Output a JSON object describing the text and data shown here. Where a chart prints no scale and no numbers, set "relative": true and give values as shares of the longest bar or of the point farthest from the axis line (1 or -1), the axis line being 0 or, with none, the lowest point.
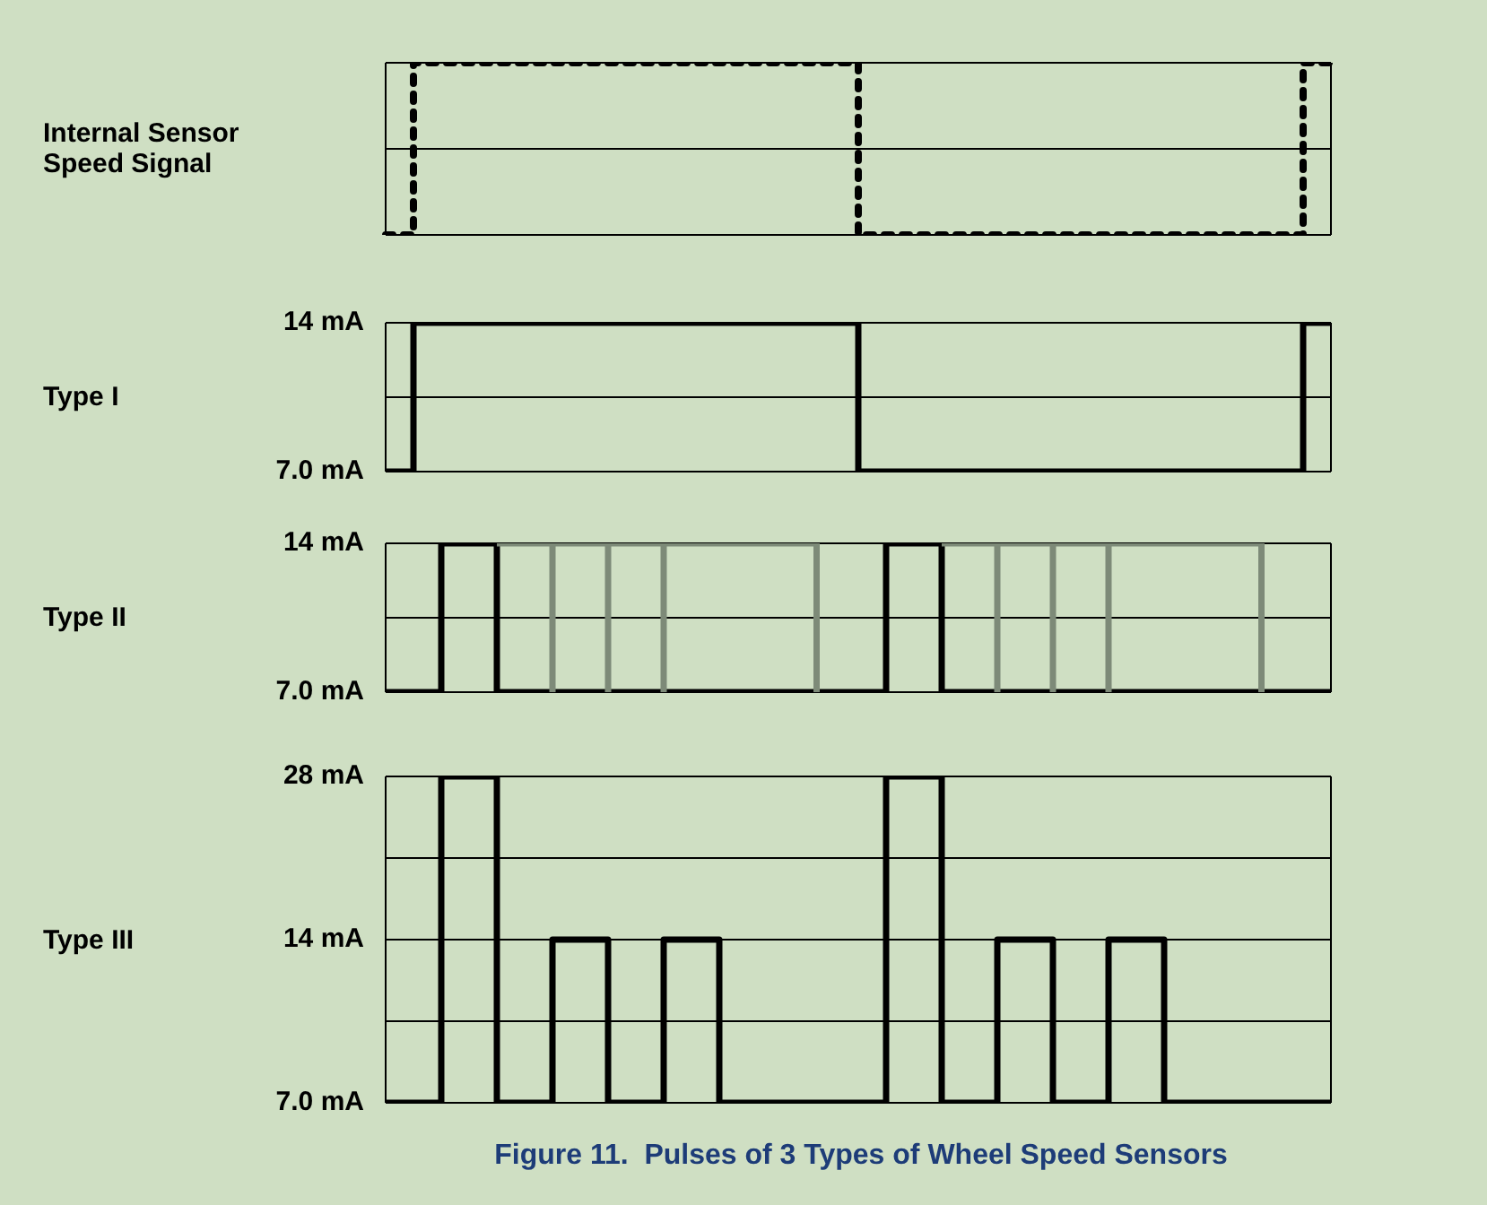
{
  "chart_data": [
    {
      "type": "step",
      "ylabel": "Internal Sensor Speed Signal",
      "relative": true,
      "line_style": "dotted",
      "grid": "y",
      "tick_labels": false,
      "legend": false,
      "ref_lines": [
        {
          "axis": "y",
          "value": 0.5,
          "color": "#000000"
        }
      ],
      "categories": [
        null,
        null,
        null,
        null,
        null,
        null,
        null,
        null,
        null,
        null,
        null,
        null,
        null,
        null,
        null,
        null,
        null,
        null,
        null,
        null,
        null,
        null,
        null,
        null,
        null,
        null,
        null,
        null,
        null,
        null,
        null,
        null,
        null,
        null,
        null,
        null,
        null,
        null,
        null,
        null,
        null,
        null,
        null,
        null,
        null,
        null,
        null,
        null,
        null,
        null,
        null,
        null,
        null,
        null,
        null,
        null,
        null,
        null,
        null,
        null,
        null,
        null,
        null,
        null,
        null,
        null,
        null,
        null,
        null
      ],
      "series": [
        {
          "color": "#000000",
          "values": [
            0,
            0,
            1,
            1,
            1,
            1,
            1,
            1,
            1,
            1,
            1,
            1,
            1,
            1,
            1,
            1,
            1,
            1,
            1,
            1,
            1,
            1,
            1,
            1,
            1,
            1,
            1,
            1,
            1,
            1,
            1,
            1,
            1,
            1,
            0,
            0,
            0,
            0,
            0,
            0,
            0,
            0,
            0,
            0,
            0,
            0,
            0,
            0,
            0,
            0,
            0,
            0,
            0,
            0,
            0,
            0,
            0,
            0,
            0,
            0,
            0,
            0,
            0,
            0,
            0,
            0,
            1,
            1,
            1
          ]
        }
      ]
    },
    {
      "type": "step",
      "ylabel": "Type I",
      "ylim": [
        7,
        14
      ],
      "yticks": [
        {
          "value": 7,
          "label": "7.0 mA"
        },
        {
          "value": 10.5,
          "label": null
        },
        {
          "value": 14,
          "label": "14 mA"
        }
      ],
      "grid": "y",
      "tick_labels": "y",
      "legend": false,
      "categories": [
        null,
        null,
        null,
        null,
        null,
        null,
        null,
        null,
        null,
        null,
        null,
        null,
        null,
        null,
        null,
        null,
        null,
        null,
        null,
        null,
        null,
        null,
        null,
        null,
        null,
        null,
        null,
        null,
        null,
        null,
        null,
        null,
        null,
        null,
        null,
        null,
        null,
        null,
        null,
        null,
        null,
        null,
        null,
        null,
        null,
        null,
        null,
        null,
        null,
        null,
        null,
        null,
        null,
        null,
        null,
        null,
        null,
        null,
        null,
        null,
        null,
        null,
        null,
        null,
        null,
        null,
        null,
        null,
        null
      ],
      "series": [
        {
          "color": "#000000",
          "values": [
            7,
            7,
            14,
            14,
            14,
            14,
            14,
            14,
            14,
            14,
            14,
            14,
            14,
            14,
            14,
            14,
            14,
            14,
            14,
            14,
            14,
            14,
            14,
            14,
            14,
            14,
            14,
            14,
            14,
            14,
            14,
            14,
            14,
            14,
            7,
            7,
            7,
            7,
            7,
            7,
            7,
            7,
            7,
            7,
            7,
            7,
            7,
            7,
            7,
            7,
            7,
            7,
            7,
            7,
            7,
            7,
            7,
            7,
            7,
            7,
            7,
            7,
            7,
            7,
            7,
            7,
            14,
            14,
            14
          ]
        }
      ]
    },
    {
      "type": "step",
      "ylabel": "Type II",
      "ylim": [
        7,
        14
      ],
      "yticks": [
        {
          "value": 7,
          "label": "7.0 mA"
        },
        {
          "value": 10.5,
          "label": null
        },
        {
          "value": 14,
          "label": "14 mA"
        }
      ],
      "grid": "y",
      "tick_labels": "y",
      "legend": false,
      "categories": [
        null,
        null,
        null,
        null,
        null,
        null,
        null,
        null,
        null,
        null,
        null,
        null,
        null,
        null,
        null,
        null,
        null,
        null,
        null,
        null,
        null,
        null,
        null,
        null,
        null,
        null,
        null,
        null,
        null,
        null,
        null,
        null,
        null,
        null,
        null,
        null,
        null,
        null,
        null,
        null,
        null,
        null,
        null,
        null,
        null,
        null,
        null,
        null,
        null,
        null,
        null,
        null,
        null,
        null,
        null,
        null,
        null,
        null,
        null,
        null,
        null,
        null,
        null,
        null,
        null,
        null,
        null,
        null,
        null
      ],
      "series": [
        {
          "color": "#7d8a78",
          "values": [
            null,
            null,
            null,
            null,
            null,
            null,
            null,
            null,
            14,
            14,
            14,
            14,
            7,
            null,
            null,
            null,
            null,
            null,
            null,
            null,
            null,
            null,
            null,
            null,
            null,
            null,
            null,
            null,
            null,
            null,
            null,
            null,
            null,
            null,
            null,
            null,
            null,
            null,
            null,
            null,
            14,
            14,
            14,
            14,
            7,
            null,
            null,
            null,
            null,
            null,
            null,
            null,
            null,
            null,
            null,
            null,
            null,
            null,
            null,
            null,
            null,
            null,
            null,
            null,
            null,
            null,
            null,
            null,
            null
          ]
        },
        {
          "color": "#7d8a78",
          "values": [
            null,
            null,
            null,
            null,
            null,
            null,
            null,
            null,
            null,
            null,
            null,
            null,
            14,
            14,
            14,
            14,
            7,
            null,
            null,
            null,
            null,
            null,
            null,
            null,
            null,
            null,
            null,
            null,
            null,
            null,
            null,
            null,
            null,
            null,
            null,
            null,
            null,
            null,
            null,
            null,
            null,
            null,
            null,
            null,
            14,
            14,
            14,
            14,
            7,
            null,
            null,
            null,
            null,
            null,
            null,
            null,
            null,
            null,
            null,
            null,
            null,
            null,
            null,
            null,
            null,
            null,
            null,
            null,
            null
          ]
        },
        {
          "color": "#7d8a78",
          "values": [
            null,
            null,
            null,
            null,
            null,
            null,
            null,
            null,
            null,
            null,
            null,
            null,
            null,
            null,
            null,
            null,
            14,
            14,
            14,
            14,
            7,
            null,
            null,
            null,
            null,
            null,
            null,
            null,
            null,
            null,
            null,
            null,
            null,
            null,
            null,
            null,
            null,
            null,
            null,
            null,
            null,
            null,
            null,
            null,
            null,
            null,
            null,
            null,
            14,
            14,
            14,
            14,
            7,
            null,
            null,
            null,
            null,
            null,
            null,
            null,
            null,
            null,
            null,
            null,
            null,
            null,
            null,
            null,
            null
          ]
        },
        {
          "color": "#7d8a78",
          "values": [
            null,
            null,
            null,
            null,
            null,
            null,
            null,
            null,
            null,
            null,
            null,
            null,
            null,
            null,
            null,
            null,
            null,
            null,
            null,
            null,
            14,
            14,
            14,
            14,
            14,
            14,
            14,
            14,
            14,
            14,
            14,
            7,
            null,
            null,
            null,
            null,
            null,
            null,
            null,
            null,
            null,
            null,
            null,
            null,
            null,
            null,
            null,
            null,
            null,
            null,
            null,
            null,
            14,
            14,
            14,
            14,
            14,
            14,
            14,
            14,
            14,
            14,
            14,
            7,
            null,
            null,
            null,
            null,
            null
          ]
        },
        {
          "color": "#000000",
          "values": [
            7,
            7,
            7,
            7,
            14,
            14,
            14,
            14,
            7,
            7,
            7,
            7,
            7,
            7,
            7,
            7,
            7,
            7,
            7,
            7,
            7,
            7,
            7,
            7,
            7,
            7,
            7,
            7,
            7,
            7,
            7,
            7,
            7,
            7,
            7,
            7,
            14,
            14,
            14,
            14,
            7,
            7,
            7,
            7,
            7,
            7,
            7,
            7,
            7,
            7,
            7,
            7,
            7,
            7,
            7,
            7,
            7,
            7,
            7,
            7,
            7,
            7,
            7,
            7,
            7,
            7,
            7,
            7,
            7
          ]
        }
      ]
    },
    {
      "type": "step",
      "ylabel": "Type III",
      "log": true,
      "ylim": [
        7,
        28
      ],
      "yticks": [
        {
          "value": 7,
          "label": "7.0 mA"
        },
        {
          "value": 9.9,
          "label": null
        },
        {
          "value": 14,
          "label": "14 mA"
        },
        {
          "value": 19.8,
          "label": null
        },
        {
          "value": 28,
          "label": "28 mA"
        }
      ],
      "grid": "y",
      "tick_labels": "y",
      "legend": false,
      "annotations": [
        "Figure 11.  Pulses of 3 Types of Wheel Speed Sensors"
      ],
      "categories": [
        null,
        null,
        null,
        null,
        null,
        null,
        null,
        null,
        null,
        null,
        null,
        null,
        null,
        null,
        null,
        null,
        null,
        null,
        null,
        null,
        null,
        null,
        null,
        null,
        null,
        null,
        null,
        null,
        null,
        null,
        null,
        null,
        null,
        null,
        null,
        null,
        null,
        null,
        null,
        null,
        null,
        null,
        null,
        null,
        null,
        null,
        null,
        null,
        null,
        null,
        null,
        null,
        null,
        null,
        null,
        null,
        null,
        null,
        null,
        null,
        null,
        null,
        null,
        null,
        null,
        null,
        null,
        null,
        null
      ],
      "series": [
        {
          "color": "#000000",
          "values": [
            7,
            7,
            7,
            7,
            28,
            28,
            28,
            28,
            7,
            7,
            7,
            7,
            14,
            14,
            14,
            14,
            7,
            7,
            7,
            7,
            14,
            14,
            14,
            14,
            7,
            7,
            7,
            7,
            7,
            7,
            7,
            7,
            7,
            7,
            7,
            7,
            28,
            28,
            28,
            28,
            7,
            7,
            7,
            7,
            14,
            14,
            14,
            14,
            7,
            7,
            7,
            7,
            14,
            14,
            14,
            14,
            7,
            7,
            7,
            7,
            7,
            7,
            7,
            7,
            7,
            7,
            7,
            7,
            7
          ]
        }
      ]
    }
  ]
}
